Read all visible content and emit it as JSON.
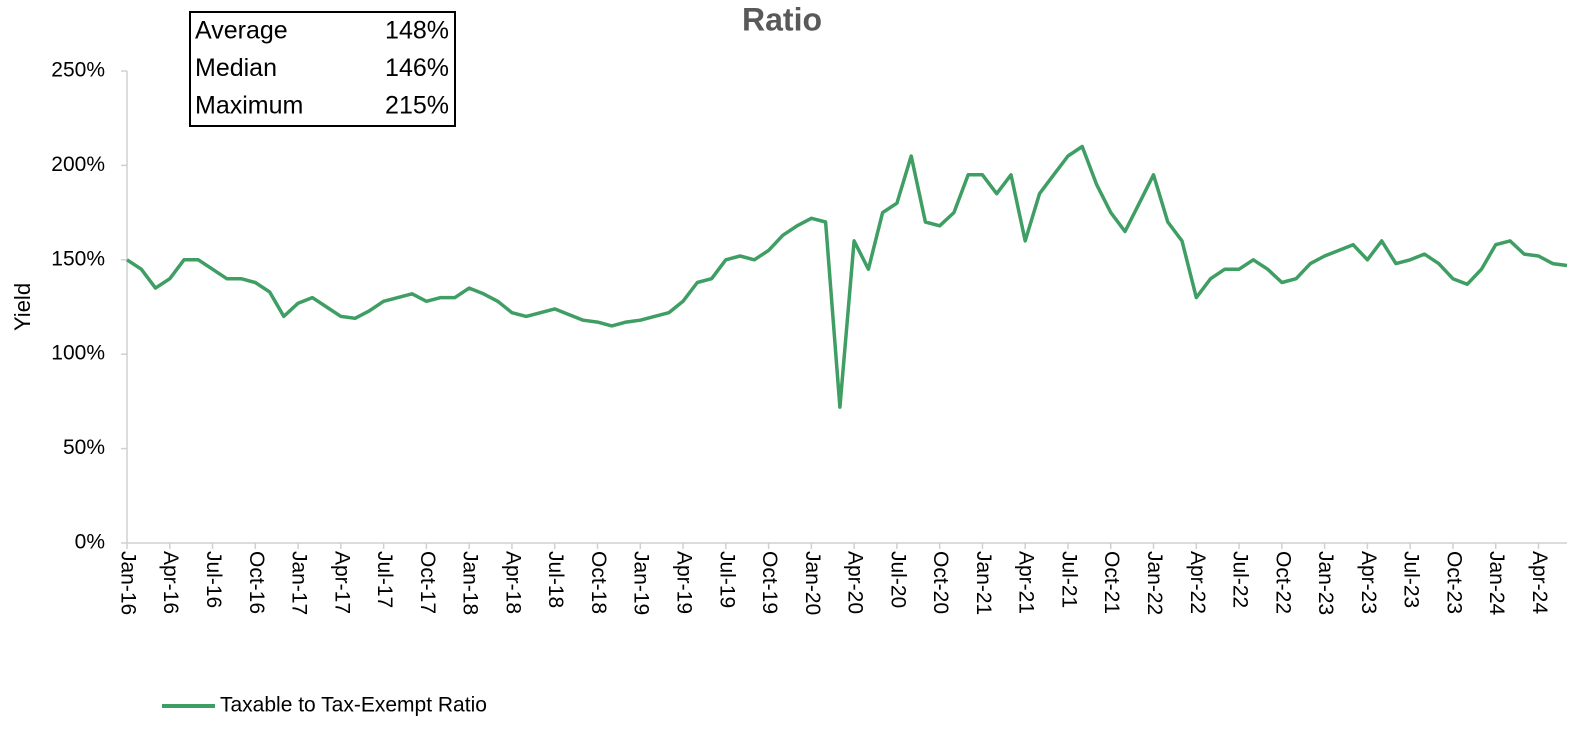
{
  "chart_data": {
    "type": "line",
    "title": "Ratio",
    "y_label": "Yield",
    "stats": [
      {
        "label": "Average",
        "value": "148%"
      },
      {
        "label": "Median",
        "value": "146%"
      },
      {
        "label": "Maximum",
        "value": "215%"
      }
    ],
    "categories": [
      "Jan-16",
      null,
      null,
      "Apr-16",
      null,
      null,
      "Jul-16",
      null,
      null,
      "Oct-16",
      null,
      null,
      "Jan-17",
      null,
      null,
      "Apr-17",
      null,
      null,
      "Jul-17",
      null,
      null,
      "Oct-17",
      null,
      null,
      "Jan-18",
      null,
      null,
      "Apr-18",
      null,
      null,
      "Jul-18",
      null,
      null,
      "Oct-18",
      null,
      null,
      "Jan-19",
      null,
      null,
      "Apr-19",
      null,
      null,
      "Jul-19",
      null,
      null,
      "Oct-19",
      null,
      null,
      "Jan-20",
      null,
      null,
      "Apr-20",
      null,
      null,
      "Jul-20",
      null,
      null,
      "Oct-20",
      null,
      null,
      "Jan-21",
      null,
      null,
      "Apr-21",
      null,
      null,
      "Jul-21",
      null,
      null,
      "Oct-21",
      null,
      null,
      "Jan-22",
      null,
      null,
      "Apr-22",
      null,
      null,
      "Jul-22",
      null,
      null,
      "Oct-22",
      null,
      null,
      "Jan-23",
      null,
      null,
      "Apr-23",
      null,
      null,
      "Jul-23",
      null,
      null,
      "Oct-23",
      null,
      null,
      "Jan-24",
      null,
      null,
      "Apr-24",
      null,
      null
    ],
    "series": [
      {
        "name": "Taxable to Tax-Exempt Ratio",
        "color": "#3f9e63",
        "values": [
          150,
          145,
          135,
          140,
          150,
          150,
          145,
          140,
          140,
          138,
          133,
          120,
          127,
          130,
          125,
          120,
          119,
          123,
          128,
          130,
          132,
          128,
          130,
          130,
          135,
          132,
          128,
          122,
          120,
          122,
          124,
          121,
          118,
          117,
          115,
          117,
          118,
          120,
          122,
          128,
          138,
          140,
          150,
          152,
          150,
          155,
          163,
          168,
          172,
          170,
          72,
          160,
          145,
          175,
          180,
          205,
          170,
          168,
          175,
          195,
          195,
          185,
          195,
          160,
          185,
          195,
          205,
          210,
          190,
          175,
          165,
          180,
          195,
          170,
          160,
          130,
          140,
          145,
          145,
          150,
          145,
          138,
          140,
          148,
          152,
          155,
          158,
          150,
          160,
          148,
          150,
          153,
          148,
          140,
          137,
          145,
          158,
          160,
          153,
          152,
          148,
          147
        ]
      }
    ],
    "ylim": [
      0,
      250
    ],
    "yticks": [
      {
        "value": 0,
        "label": "0%"
      },
      {
        "value": 50,
        "label": "50%"
      },
      {
        "value": 100,
        "label": "100%"
      },
      {
        "value": 150,
        "label": "150%"
      },
      {
        "value": 200,
        "label": "200%"
      },
      {
        "value": 250,
        "label": "250%"
      }
    ],
    "grid": false,
    "legend": "bottom-left"
  }
}
